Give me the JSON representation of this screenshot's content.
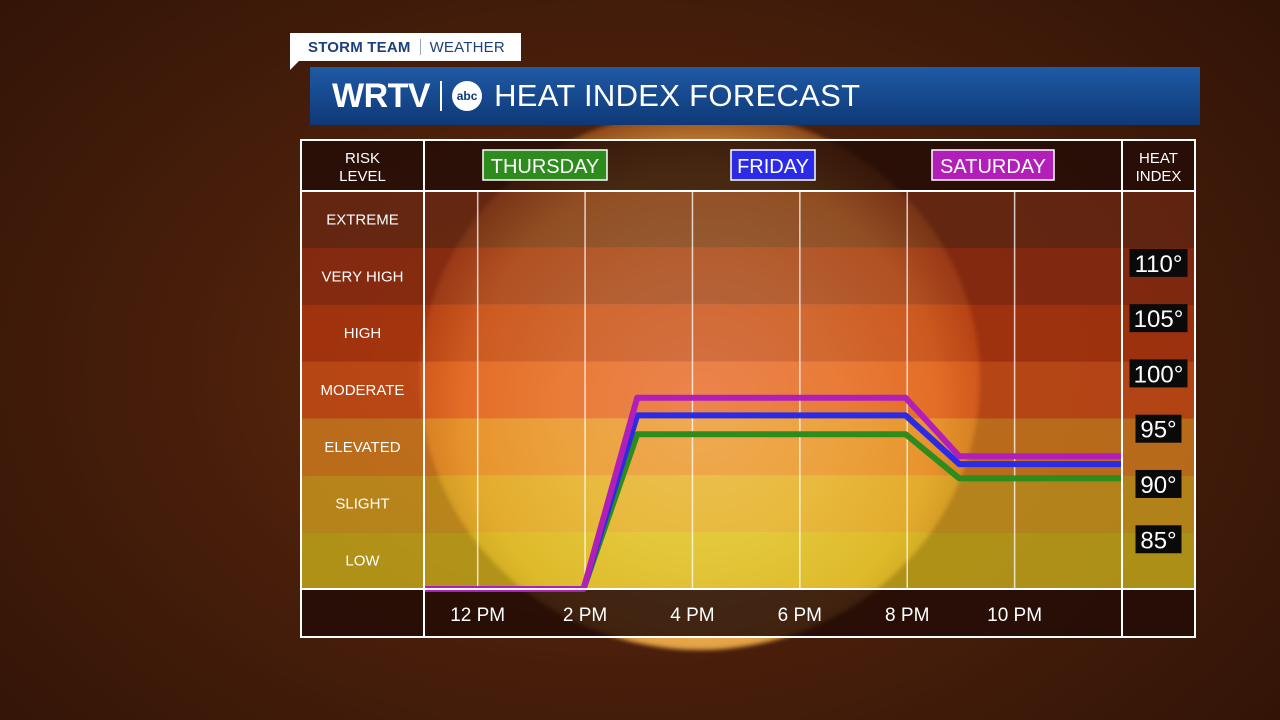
{
  "header": {
    "tag_primary": "STORM TEAM",
    "tag_secondary": "WEATHER",
    "station_logo": "WRTV",
    "network_logo": "abc",
    "title": "HEAT INDEX FORECAST"
  },
  "columns": {
    "risk_header": [
      "RISK",
      "LEVEL"
    ],
    "index_header": [
      "HEAT",
      "INDEX"
    ]
  },
  "risk_levels": [
    {
      "label": "EXTREME",
      "color": "#6e2a14"
    },
    {
      "label": "VERY HIGH",
      "color": "#9a2e12"
    },
    {
      "label": "HIGH",
      "color": "#c23a10"
    },
    {
      "label": "MODERATE",
      "color": "#e2561a"
    },
    {
      "label": "ELEVATED",
      "color": "#e88c22"
    },
    {
      "label": "SLIGHT",
      "color": "#e3ae22"
    },
    {
      "label": "LOW",
      "color": "#dcc21e"
    }
  ],
  "chart_data": {
    "type": "line",
    "x": [
      11,
      12,
      12.5,
      13,
      14,
      16,
      18,
      19.5,
      20,
      22,
      24
    ],
    "x_tick_labels": [
      "12 PM",
      "2 PM",
      "4 PM",
      "6 PM",
      "8 PM",
      "10 PM"
    ],
    "x_ticks": [
      12,
      14,
      16,
      18,
      20,
      22
    ],
    "xlim": [
      11,
      24
    ],
    "y_tick_labels": [
      "110°",
      "105°",
      "100°",
      "95°",
      "90°",
      "85°"
    ],
    "y_ticks": [
      110,
      105,
      100,
      95,
      90,
      85
    ],
    "ylim": [
      80.5,
      116.5
    ],
    "series": [
      {
        "name": "THURSDAY",
        "color": "#2e8c1e",
        "points": [
          [
            11,
            80.5
          ],
          [
            13.97,
            80.5
          ],
          [
            14.97,
            94.5
          ],
          [
            19.97,
            94.5
          ],
          [
            20.97,
            90.5
          ],
          [
            24,
            90.5
          ]
        ]
      },
      {
        "name": "FRIDAY",
        "color": "#2b2be6",
        "points": [
          [
            11,
            80.5
          ],
          [
            13.97,
            80.5
          ],
          [
            14.97,
            96.2
          ],
          [
            19.97,
            96.2
          ],
          [
            20.97,
            91.8
          ],
          [
            24,
            91.8
          ]
        ]
      },
      {
        "name": "SATURDAY",
        "color": "#b21fb8",
        "points": [
          [
            11,
            80.5
          ],
          [
            13.97,
            80.5
          ],
          [
            14.97,
            97.8
          ],
          [
            19.97,
            97.8
          ],
          [
            20.97,
            92.5
          ],
          [
            24,
            92.5
          ]
        ]
      }
    ],
    "grid": true
  }
}
